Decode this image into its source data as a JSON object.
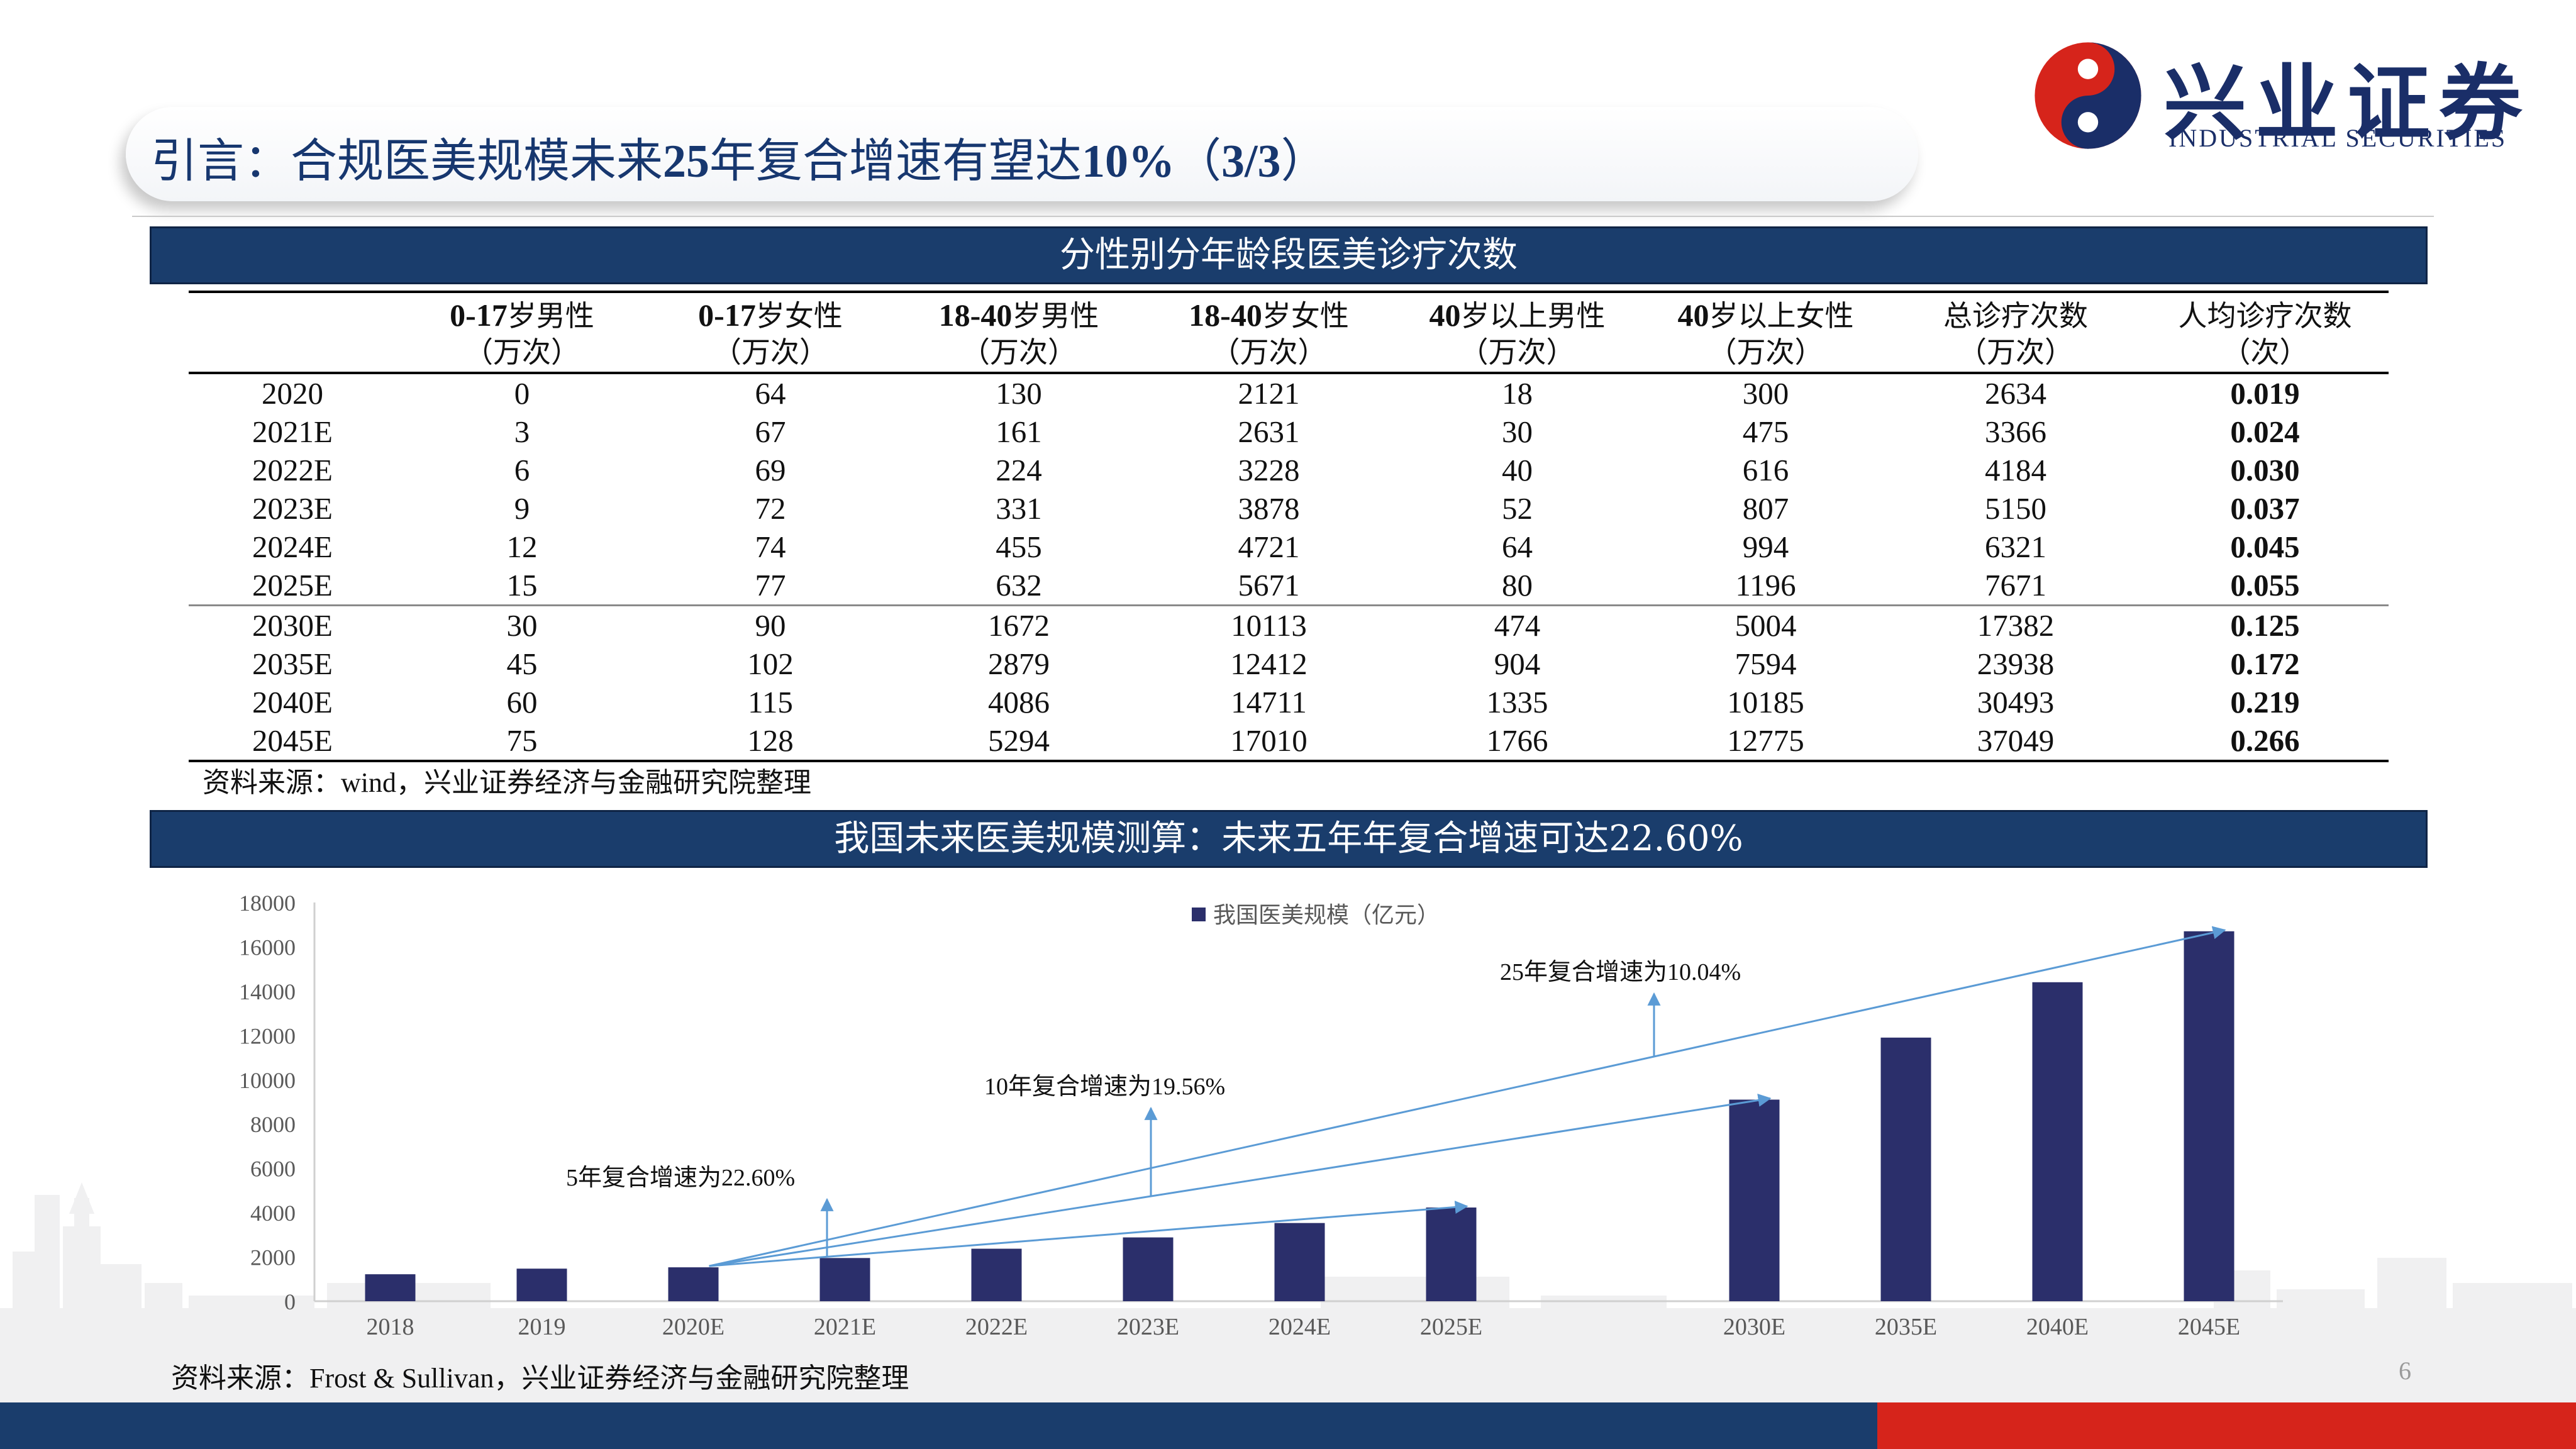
{
  "header": {
    "title_prefix": "引言：合规医美规模未来",
    "title_num1": "25",
    "title_mid": "年复合增速有望达",
    "title_num2": "10%",
    "title_suffix_open": "（",
    "title_num3": "3/3",
    "title_suffix_close": "）"
  },
  "logo": {
    "cn": "兴业证券",
    "en": "INDUSTRIAL SECURITIES",
    "colors": {
      "navy": "#1a2e68",
      "red": "#d6241b"
    }
  },
  "table_section": {
    "bar_title": "分性别分年龄段医美诊疗次数",
    "columns": [
      {
        "l1_num": "",
        "l1_cn": "",
        "l2": ""
      },
      {
        "l1_num": "0-17",
        "l1_cn": "岁男性",
        "l2": "（万次）"
      },
      {
        "l1_num": "0-17",
        "l1_cn": "岁女性",
        "l2": "（万次）"
      },
      {
        "l1_num": "18-40",
        "l1_cn": "岁男性",
        "l2": "（万次）"
      },
      {
        "l1_num": "18-40",
        "l1_cn": "岁女性",
        "l2": "（万次）"
      },
      {
        "l1_num": "40",
        "l1_cn": "岁以上男性",
        "l2": "（万次）"
      },
      {
        "l1_num": "40",
        "l1_cn": "岁以上女性",
        "l2": "（万次）"
      },
      {
        "l1_num": "",
        "l1_cn": "总诊疗次数",
        "l2": "（万次）"
      },
      {
        "l1_num": "",
        "l1_cn": "人均诊疗次数",
        "l2": "（次）"
      }
    ],
    "rows": [
      [
        "2020",
        "0",
        "64",
        "130",
        "2121",
        "18",
        "300",
        "2634",
        "0.019"
      ],
      [
        "2021E",
        "3",
        "67",
        "161",
        "2631",
        "30",
        "475",
        "3366",
        "0.024"
      ],
      [
        "2022E",
        "6",
        "69",
        "224",
        "3228",
        "40",
        "616",
        "4184",
        "0.030"
      ],
      [
        "2023E",
        "9",
        "72",
        "331",
        "3878",
        "52",
        "807",
        "5150",
        "0.037"
      ],
      [
        "2024E",
        "12",
        "74",
        "455",
        "4721",
        "64",
        "994",
        "6321",
        "0.045"
      ],
      [
        "2025E",
        "15",
        "77",
        "632",
        "5671",
        "80",
        "1196",
        "7671",
        "0.055"
      ],
      [
        "2030E",
        "30",
        "90",
        "1672",
        "10113",
        "474",
        "5004",
        "17382",
        "0.125"
      ],
      [
        "2035E",
        "45",
        "102",
        "2879",
        "12412",
        "904",
        "7594",
        "23938",
        "0.172"
      ],
      [
        "2040E",
        "60",
        "115",
        "4086",
        "14711",
        "1335",
        "10185",
        "30493",
        "0.219"
      ],
      [
        "2045E",
        "75",
        "128",
        "5294",
        "17010",
        "1766",
        "12775",
        "37049",
        "0.266"
      ]
    ],
    "source_cn1": "资料来源：",
    "source_en": "wind",
    "source_cn2": "，兴业证券经济与金融研究院整理"
  },
  "chart_section": {
    "bar_title": "我国未来医美规模测算：未来五年年复合增速可达22.60%",
    "source_cn1": "资料来源：",
    "source_en": "Frost & Sullivan",
    "source_cn2": "，兴业证券经济与金融研究院整理"
  },
  "chart_data": {
    "type": "bar",
    "categories": [
      "2018",
      "2019",
      "2020E",
      "2021E",
      "2022E",
      "2023E",
      "2024E",
      "2025E",
      "2030E",
      "2035E",
      "2040E",
      "2045E"
    ],
    "series": [
      {
        "name": "我国医美规模（亿元）",
        "values": [
          1217,
          1470,
          1530,
          1950,
          2370,
          2880,
          3530,
          4230,
          9100,
          11900,
          14400,
          16700
        ],
        "color": "#2b2f6b"
      }
    ],
    "ylim": [
      0,
      18000
    ],
    "yticks": [
      "0",
      "2000",
      "4000",
      "6000",
      "8000",
      "10000",
      "12000",
      "14000",
      "16000",
      "18000"
    ],
    "legend": "top-center",
    "grid": false,
    "annotations": [
      {
        "text": "5年复合增速为22.60%",
        "from": "2020E",
        "to": "2025E"
      },
      {
        "text": "10年复合增速为19.56%",
        "from": "2020E",
        "to": "2030E"
      },
      {
        "text": "25年复合增速为10.04%",
        "from": "2020E",
        "to": "2045E"
      }
    ],
    "arrow_color": "#5b9bd5"
  },
  "page_number": "6"
}
